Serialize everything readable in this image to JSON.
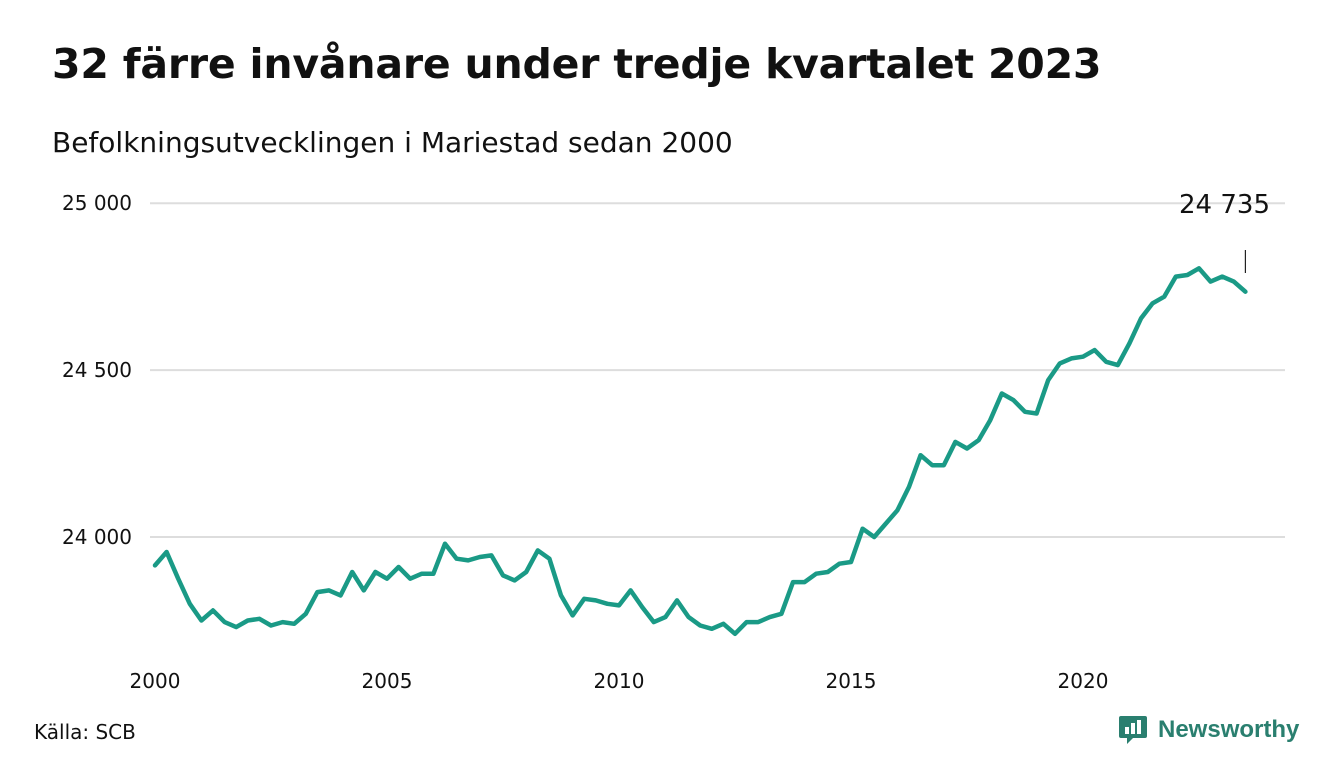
{
  "header": {
    "title": "32 färre invånare under tredje kvartalet 2023",
    "subtitle": "Befolkningsutvecklingen i Mariestad sedan 2000"
  },
  "footer": {
    "source": "Källa: SCB",
    "brand": "Newsworthy"
  },
  "colors": {
    "line": "#1a9a86",
    "grid": "#dddddd",
    "brand": "#2a7f6f"
  },
  "chart_data": {
    "type": "line",
    "title": "32 färre invånare under tredje kvartalet 2023",
    "subtitle": "Befolkningsutvecklingen i Mariestad sedan 2000",
    "xlabel": "",
    "ylabel": "",
    "x_ticks": [
      {
        "value": 2000,
        "label": "2000"
      },
      {
        "value": 2005,
        "label": "2005"
      },
      {
        "value": 2010,
        "label": "2010"
      },
      {
        "value": 2015,
        "label": "2015"
      },
      {
        "value": 2020,
        "label": "2020"
      }
    ],
    "y_ticks": [
      {
        "value": 24000,
        "label": "24 000"
      },
      {
        "value": 24500,
        "label": "24 500"
      },
      {
        "value": 25000,
        "label": "25 000"
      }
    ],
    "xlim": [
      2000,
      2024
    ],
    "ylim": [
      23700,
      25000
    ],
    "grid": "horizontal",
    "end_label": "24 735",
    "series": [
      {
        "x_start": "2000 Q1",
        "values": [
          23915,
          23955,
          23875,
          23800,
          23750,
          23780,
          23745,
          23730,
          23750,
          23755,
          23735,
          23745,
          23740,
          23770,
          23835,
          23840,
          23825,
          23895,
          23840,
          23895,
          23875,
          23910,
          23875,
          23890,
          23890,
          23980,
          23935,
          23930,
          23940,
          23945,
          23885,
          23870,
          23895,
          23960,
          23935,
          23825,
          23765,
          23815,
          23810,
          23800,
          23795,
          23840,
          23790,
          23745,
          23760,
          23810,
          23760,
          23735,
          23725,
          23740,
          23710,
          23745,
          23745,
          23760,
          23770,
          23865,
          23865,
          23890,
          23895,
          23920,
          23925,
          24025,
          24000,
          24040,
          24080,
          24150,
          24245,
          24215,
          24215,
          24285,
          24265,
          24290,
          24350,
          24430,
          24410,
          24375,
          24370,
          24470,
          24520,
          24535,
          24540,
          24560,
          24525,
          24515,
          24580,
          24655,
          24700,
          24720,
          24780,
          24785,
          24805,
          24765,
          24780,
          24765,
          24735
        ]
      }
    ]
  }
}
